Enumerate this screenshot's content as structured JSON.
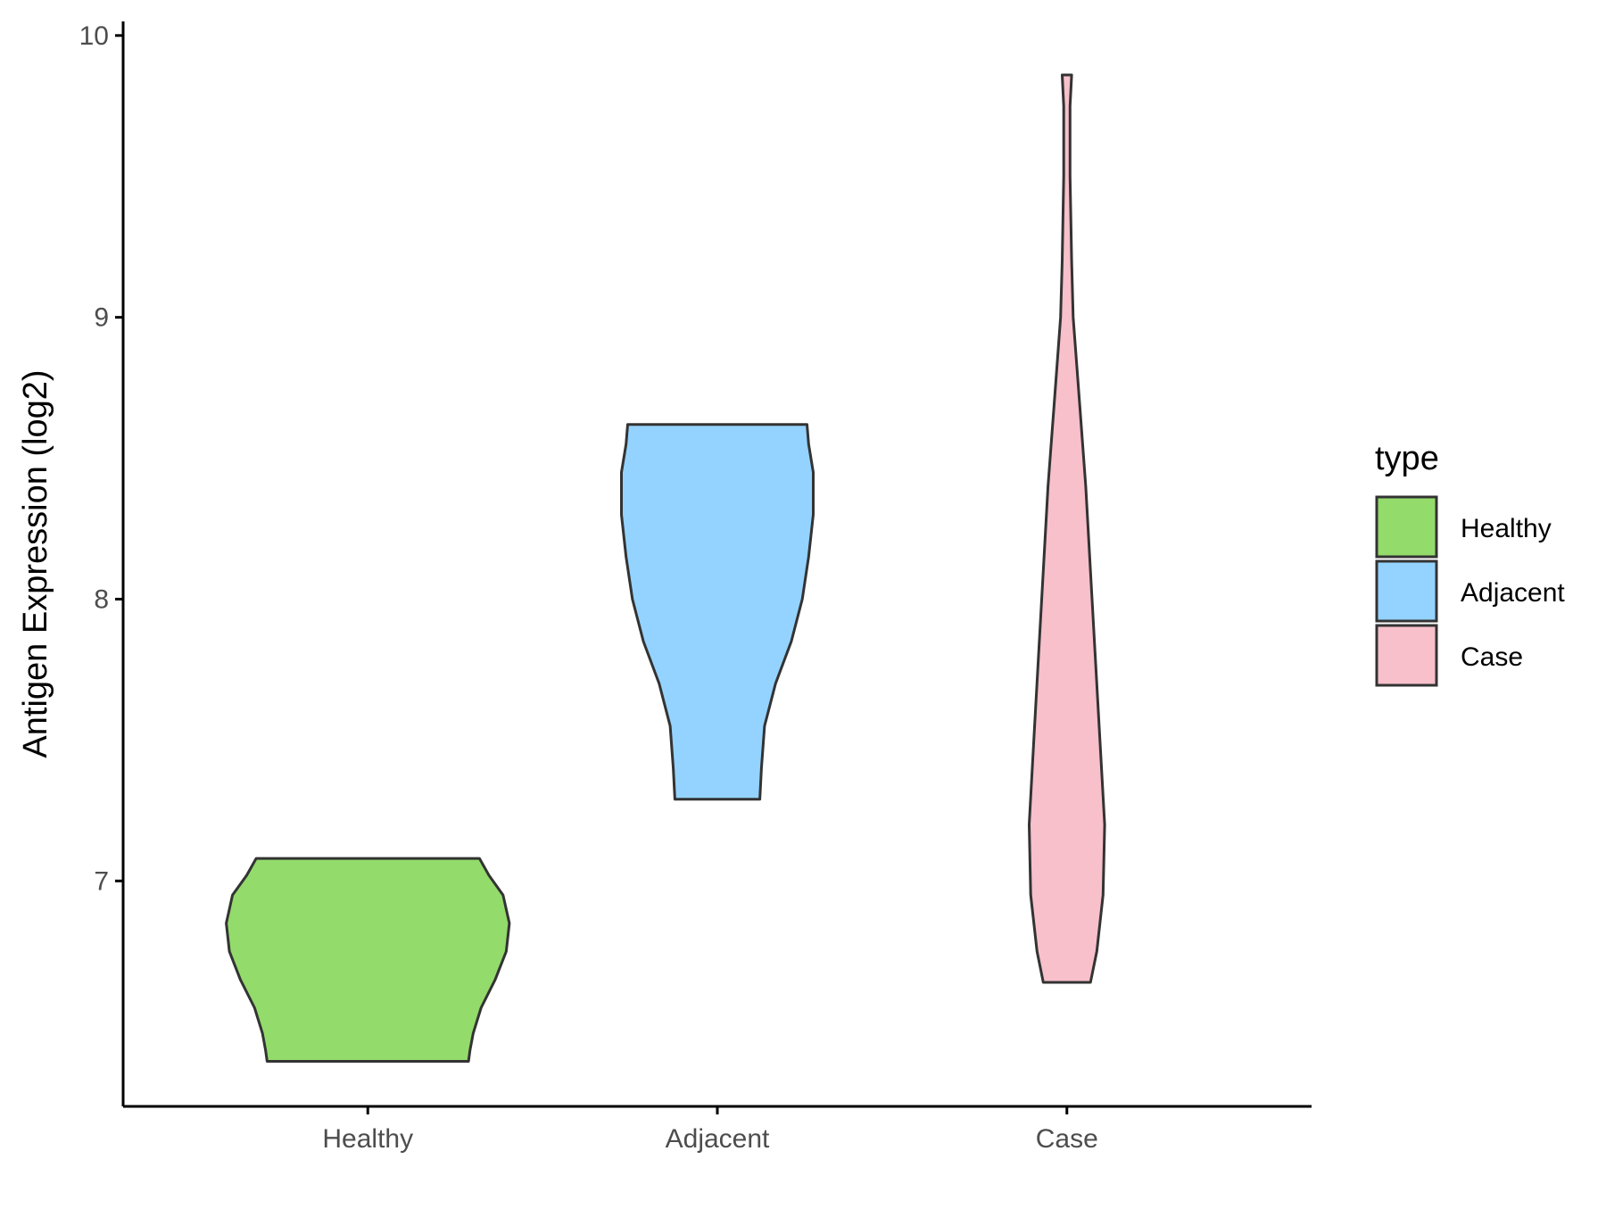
{
  "chart_data": {
    "type": "violin",
    "xlabel": "",
    "ylabel": "Antigen Expression (log2)",
    "categories": [
      "Healthy",
      "Adjacent",
      "Case"
    ],
    "ylim": [
      6.2,
      10.05
    ],
    "yticks": [
      7,
      8,
      9,
      10
    ],
    "grid": false,
    "legend": {
      "title": "type",
      "position": "right",
      "entries": [
        "Healthy",
        "Adjacent",
        "Case"
      ]
    },
    "colors": {
      "Healthy": "#93DB6B",
      "Adjacent": "#94D3FF",
      "Case": "#F7C0CB",
      "outline": "#333333"
    },
    "series": [
      {
        "name": "Healthy",
        "min": 6.36,
        "max": 7.08,
        "density": [
          [
            6.36,
            0.64
          ],
          [
            6.4,
            0.65
          ],
          [
            6.46,
            0.67
          ],
          [
            6.55,
            0.72
          ],
          [
            6.65,
            0.81
          ],
          [
            6.75,
            0.88
          ],
          [
            6.85,
            0.9
          ],
          [
            6.95,
            0.86
          ],
          [
            7.02,
            0.77
          ],
          [
            7.08,
            0.71
          ]
        ]
      },
      {
        "name": "Adjacent",
        "min": 7.29,
        "max": 8.62,
        "density": [
          [
            7.29,
            0.27
          ],
          [
            7.4,
            0.28
          ],
          [
            7.55,
            0.3
          ],
          [
            7.7,
            0.37
          ],
          [
            7.85,
            0.47
          ],
          [
            8.0,
            0.54
          ],
          [
            8.15,
            0.58
          ],
          [
            8.3,
            0.61
          ],
          [
            8.45,
            0.61
          ],
          [
            8.55,
            0.58
          ],
          [
            8.62,
            0.57
          ]
        ]
      },
      {
        "name": "Case",
        "min": 6.64,
        "max": 9.86,
        "density": [
          [
            6.64,
            0.15
          ],
          [
            6.75,
            0.19
          ],
          [
            6.95,
            0.23
          ],
          [
            7.2,
            0.24
          ],
          [
            7.5,
            0.21
          ],
          [
            7.8,
            0.18
          ],
          [
            8.1,
            0.15
          ],
          [
            8.4,
            0.12
          ],
          [
            8.7,
            0.08
          ],
          [
            9.0,
            0.04
          ],
          [
            9.2,
            0.03
          ],
          [
            9.5,
            0.02
          ],
          [
            9.75,
            0.02
          ],
          [
            9.86,
            0.03
          ]
        ]
      }
    ]
  }
}
